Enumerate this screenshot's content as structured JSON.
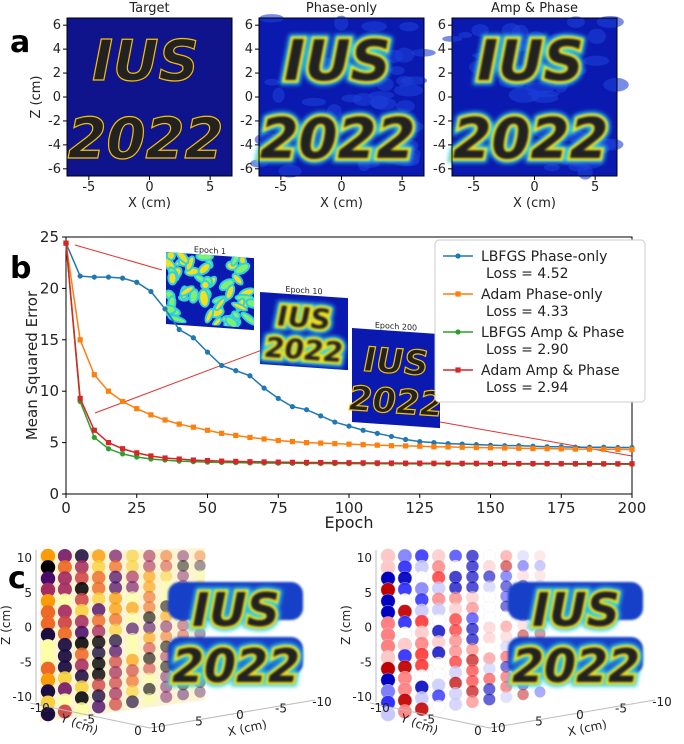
{
  "panel_a": {
    "label": "a",
    "titles": [
      "Target",
      "Phase-only",
      "Amp & Phase"
    ],
    "xlabel": "X (cm)",
    "ylabel": "Z (cm)",
    "xlim": [
      -6.8,
      6.8
    ],
    "ylim": [
      -6.6,
      6.6
    ],
    "xticks": [
      -5,
      0,
      5
    ],
    "yticks": [
      6,
      4,
      2,
      0,
      -2,
      -4,
      -6
    ],
    "image_text": [
      "IUS",
      "2022"
    ]
  },
  "chart_data": {
    "type": "line",
    "label": "b",
    "xlabel": "Epoch",
    "ylabel": "Mean Squared Error",
    "xlim": [
      0,
      200
    ],
    "ylim": [
      0,
      25
    ],
    "xticks": [
      0,
      25,
      50,
      75,
      100,
      125,
      150,
      175,
      200
    ],
    "yticks": [
      0,
      5,
      10,
      15,
      20,
      25
    ],
    "grid": false,
    "x": [
      0,
      5,
      10,
      15,
      20,
      25,
      30,
      35,
      40,
      45,
      50,
      55,
      60,
      65,
      70,
      75,
      80,
      85,
      90,
      95,
      100,
      105,
      110,
      115,
      120,
      125,
      130,
      135,
      140,
      145,
      150,
      155,
      160,
      165,
      170,
      175,
      180,
      185,
      190,
      195,
      200
    ],
    "series": [
      {
        "name": "LBFGS Phase-only",
        "note": "Loss = 4.52",
        "color": "#1f77b4",
        "values": [
          24.4,
          21.2,
          21.1,
          21.1,
          21.0,
          20.6,
          19.7,
          18.0,
          16.0,
          15.2,
          13.8,
          12.5,
          12.0,
          11.5,
          10.3,
          9.3,
          8.5,
          8.2,
          7.6,
          7.0,
          6.6,
          6.2,
          5.9,
          5.6,
          5.3,
          5.1,
          5.0,
          4.9,
          4.85,
          4.8,
          4.75,
          4.7,
          4.7,
          4.65,
          4.6,
          4.6,
          4.55,
          4.55,
          4.55,
          4.52,
          4.52
        ]
      },
      {
        "name": "Adam Phase-only",
        "note": "Loss = 4.33",
        "color": "#ff7f0e",
        "values": [
          24.4,
          15,
          11.6,
          10,
          9,
          8.3,
          7.7,
          7.2,
          6.8,
          6.5,
          6.2,
          5.9,
          5.7,
          5.5,
          5.35,
          5.2,
          5.1,
          5.0,
          4.95,
          4.9,
          4.85,
          4.8,
          4.75,
          4.7,
          4.68,
          4.65,
          4.6,
          4.58,
          4.55,
          4.52,
          4.5,
          4.48,
          4.45,
          4.43,
          4.41,
          4.39,
          4.37,
          4.36,
          4.35,
          4.34,
          4.33
        ]
      },
      {
        "name": "LBFGS Amp & Phase",
        "note": "Loss = 2.90",
        "color": "#2ca02c",
        "values": [
          24.4,
          9.0,
          5.5,
          4.4,
          3.9,
          3.6,
          3.4,
          3.3,
          3.2,
          3.15,
          3.1,
          3.07,
          3.05,
          3.03,
          3.01,
          3.0,
          2.99,
          2.98,
          2.97,
          2.96,
          2.95,
          2.95,
          2.94,
          2.94,
          2.93,
          2.93,
          2.93,
          2.92,
          2.92,
          2.92,
          2.92,
          2.91,
          2.91,
          2.91,
          2.91,
          2.91,
          2.9,
          2.9,
          2.9,
          2.9,
          2.9
        ]
      },
      {
        "name": "Adam Amp & Phase",
        "note": "Loss = 2.94",
        "color": "#d62728",
        "values": [
          24.4,
          9.3,
          6.2,
          5.0,
          4.4,
          4.0,
          3.7,
          3.5,
          3.4,
          3.3,
          3.25,
          3.2,
          3.17,
          3.14,
          3.12,
          3.1,
          3.08,
          3.07,
          3.06,
          3.05,
          3.04,
          3.03,
          3.02,
          3.01,
          3.0,
          3.0,
          2.99,
          2.99,
          2.98,
          2.98,
          2.97,
          2.97,
          2.96,
          2.96,
          2.96,
          2.95,
          2.95,
          2.95,
          2.94,
          2.94,
          2.94
        ]
      }
    ],
    "insets": [
      {
        "title": "Epoch 1"
      },
      {
        "title": "Epoch 10"
      },
      {
        "title": "Epoch 200"
      }
    ]
  },
  "panel_c": {
    "label": "c",
    "zlabel": "Z (cm)",
    "ylabel": "Y (cm)",
    "xlabel": "X (cm)",
    "zticks": [
      10,
      5,
      0,
      -5,
      -10
    ],
    "yticks": [
      -10,
      -5,
      0
    ],
    "xticks": [
      10,
      5,
      0,
      -5,
      -10
    ]
  }
}
